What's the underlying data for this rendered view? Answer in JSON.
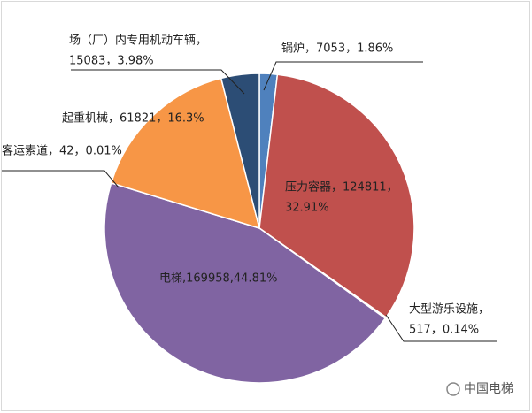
{
  "chart_data": {
    "type": "pie",
    "categories": [
      "锅炉",
      "压力容器",
      "大型游乐设施",
      "电梯",
      "客运索道",
      "起重机械",
      "场（厂）内专用机动车辆"
    ],
    "values": [
      7053,
      124811,
      517,
      169958,
      42,
      61821,
      15083
    ],
    "value_labels": [
      [
        "锅炉，7053，1.86%"
      ],
      [
        "压力容器，124811，",
        "32.91%"
      ],
      [
        "大型游乐设施，",
        "517，0.14%"
      ],
      [
        "电梯,169958,44.81%"
      ],
      [
        "客运索道，42，0.01%"
      ],
      [
        "起重机械，61821，16.3%"
      ],
      [
        "场（厂）内专用机动车辆，",
        "15083，3.98%"
      ]
    ],
    "colors": [
      "#4f81bd",
      "#c0504d",
      "#9bbb59",
      "#8064a2",
      "#4bacc6",
      "#f79646",
      "#2c4d75"
    ]
  },
  "watermark": "中国电梯"
}
